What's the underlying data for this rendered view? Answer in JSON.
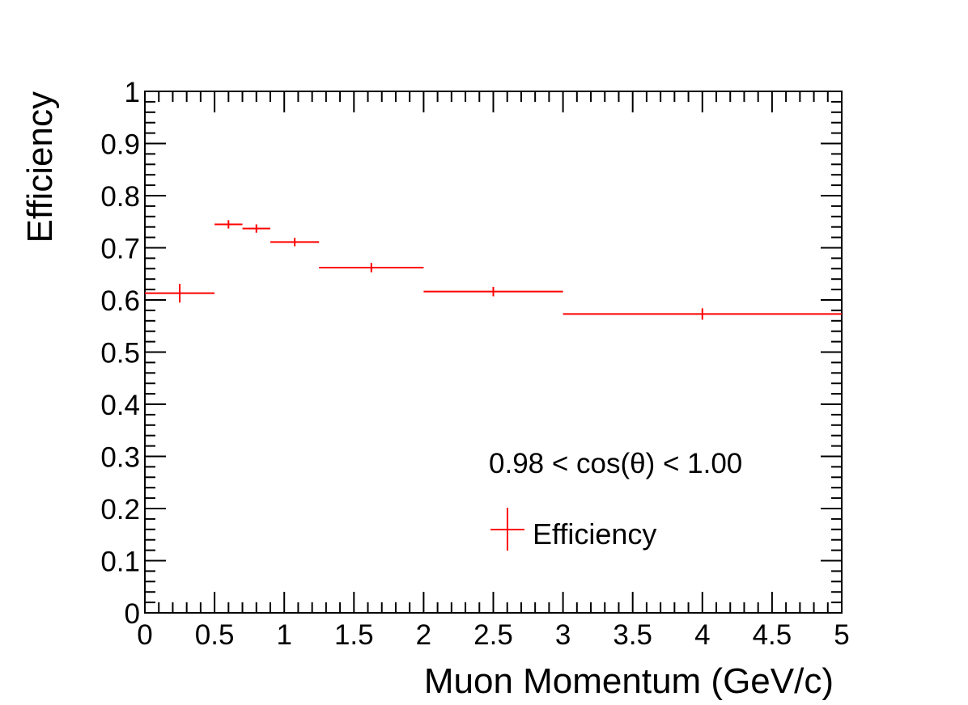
{
  "chart_data": {
    "type": "scatter",
    "title": "",
    "xlabel": "Muon Momentum (GeV/c)",
    "ylabel": "Efficiency",
    "xlim": [
      0,
      5
    ],
    "ylim": [
      0,
      1
    ],
    "x_ticks": [
      "0",
      "0.5",
      "1",
      "1.5",
      "2",
      "2.5",
      "3",
      "3.5",
      "4",
      "4.5",
      "5"
    ],
    "y_ticks": [
      "0",
      "0.1",
      "0.2",
      "0.3",
      "0.4",
      "0.5",
      "0.6",
      "0.7",
      "0.8",
      "0.9",
      "1"
    ],
    "annotation": "0.98 < cos(θ) < 1.00",
    "legend": {
      "label": "Efficiency",
      "position": "bottom-right"
    },
    "series": [
      {
        "name": "Efficiency",
        "color": "#ff0000",
        "points": [
          {
            "x": 0.25,
            "xlow": 0.0,
            "xhigh": 0.5,
            "y": 0.613,
            "err": 0.018
          },
          {
            "x": 0.6,
            "xlow": 0.5,
            "xhigh": 0.7,
            "y": 0.745,
            "err": 0.008
          },
          {
            "x": 0.8,
            "xlow": 0.7,
            "xhigh": 0.9,
            "y": 0.737,
            "err": 0.008
          },
          {
            "x": 1.075,
            "xlow": 0.9,
            "xhigh": 1.25,
            "y": 0.711,
            "err": 0.008
          },
          {
            "x": 1.625,
            "xlow": 1.25,
            "xhigh": 2.0,
            "y": 0.662,
            "err": 0.009
          },
          {
            "x": 2.5,
            "xlow": 2.0,
            "xhigh": 3.0,
            "y": 0.616,
            "err": 0.009
          },
          {
            "x": 4.0,
            "xlow": 3.0,
            "xhigh": 5.0,
            "y": 0.573,
            "err": 0.011
          }
        ]
      }
    ]
  }
}
